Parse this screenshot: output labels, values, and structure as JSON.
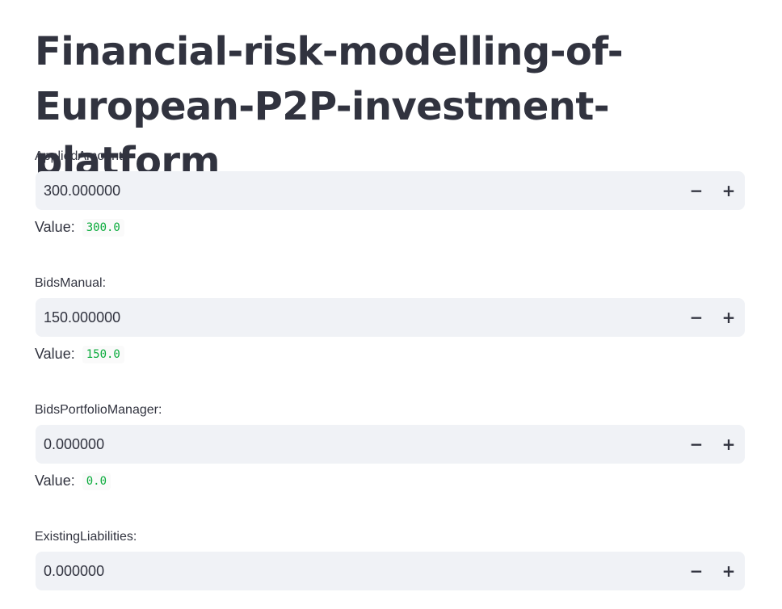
{
  "page": {
    "title": "Financial-risk-modelling-of-European-P2P-investment-platform"
  },
  "fields": [
    {
      "label": "AppliedAmount:",
      "input_value": "300.000000",
      "value_prefix": "Value:",
      "value": "300.0"
    },
    {
      "label": "BidsManual:",
      "input_value": "150.000000",
      "value_prefix": "Value:",
      "value": "150.0"
    },
    {
      "label": "BidsPortfolioManager:",
      "input_value": "0.000000",
      "value_prefix": "Value:",
      "value": "0.0"
    },
    {
      "label": "ExistingLiabilities:",
      "input_value": "0.000000"
    }
  ],
  "controls": {
    "decrement": "−",
    "increment": "+"
  },
  "colors": {
    "input_background": "#f0f2f6",
    "text": "#31333f",
    "code_text": "#09ab3b"
  }
}
